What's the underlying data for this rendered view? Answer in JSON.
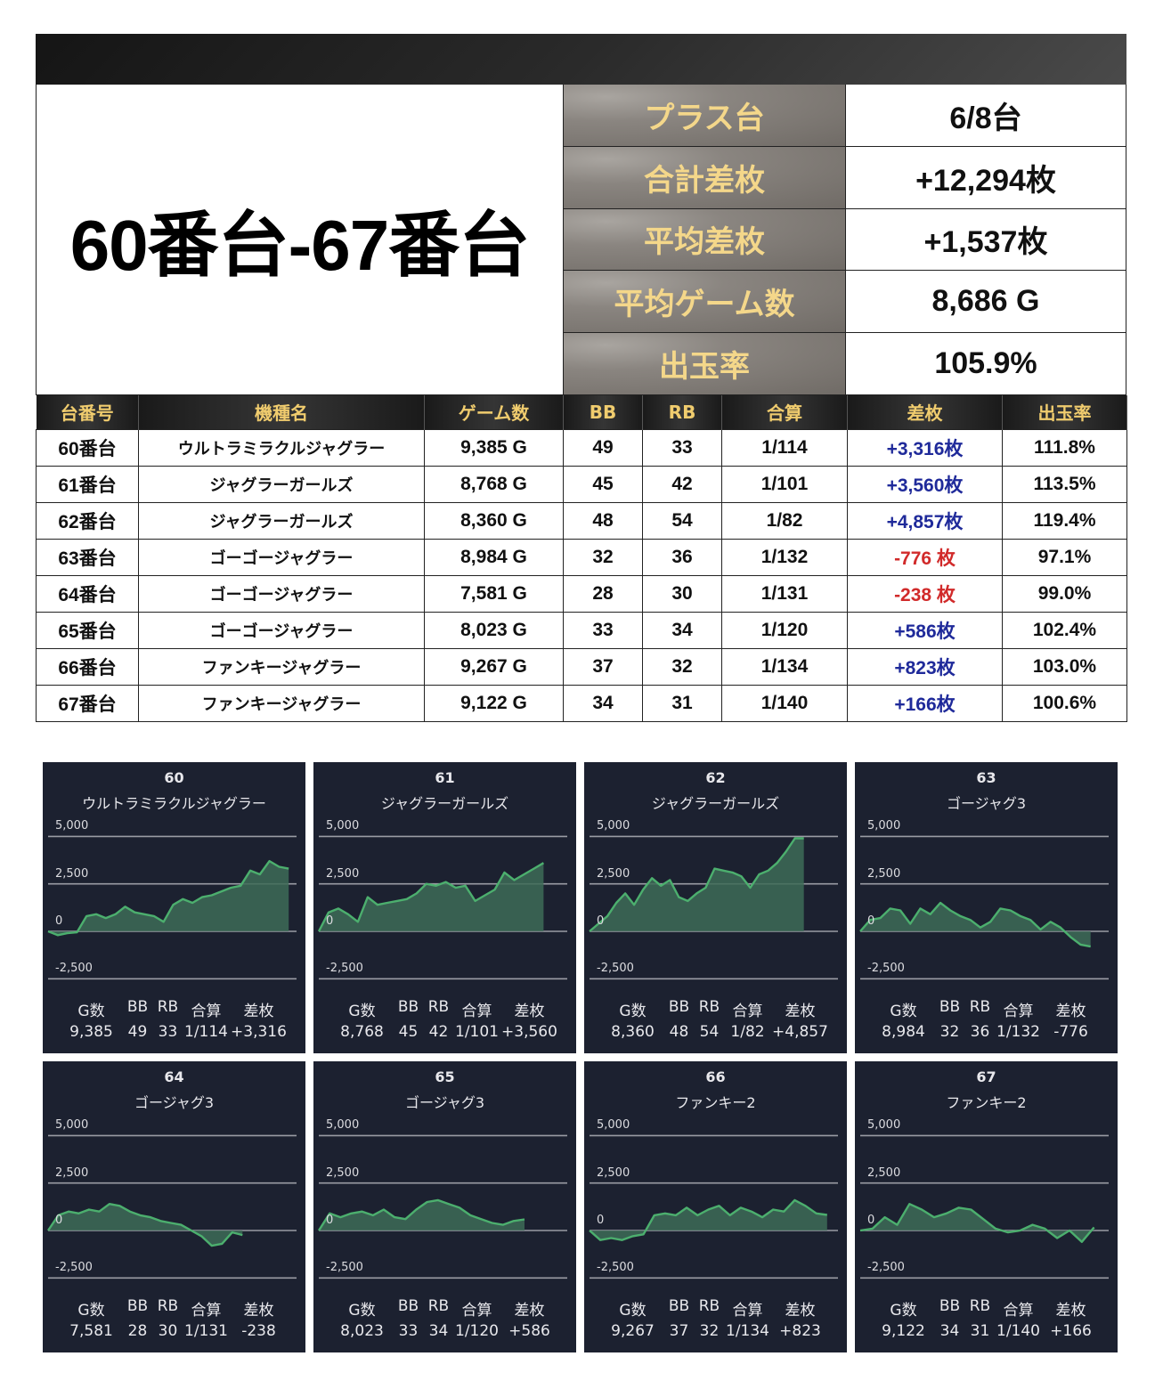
{
  "header": {
    "title": "60番台-67番台"
  },
  "summary": [
    {
      "label": "プラス台",
      "value": "6/8台"
    },
    {
      "label": "合計差枚",
      "value": "+12,294枚"
    },
    {
      "label": "平均差枚",
      "value": "+1,537枚"
    },
    {
      "label": "平均ゲーム数",
      "value": "8,686 G"
    },
    {
      "label": "出玉率",
      "value": "105.9%"
    }
  ],
  "table": {
    "headers": [
      "台番号",
      "機種名",
      "ゲーム数",
      "BB",
      "RB",
      "合算",
      "差枚",
      "出玉率"
    ],
    "rows": [
      {
        "machine": "60番台",
        "model": "ウルトラミラクルジャグラー",
        "games": "9,385 G",
        "bb": "49",
        "rb": "33",
        "combined": "1/114",
        "diff": "+3,316枚",
        "rate": "111.8%",
        "sign": "plus"
      },
      {
        "machine": "61番台",
        "model": "ジャグラーガールズ",
        "games": "8,768 G",
        "bb": "45",
        "rb": "42",
        "combined": "1/101",
        "diff": "+3,560枚",
        "rate": "113.5%",
        "sign": "plus"
      },
      {
        "machine": "62番台",
        "model": "ジャグラーガールズ",
        "games": "8,360 G",
        "bb": "48",
        "rb": "54",
        "combined": "1/82",
        "diff": "+4,857枚",
        "rate": "119.4%",
        "sign": "plus"
      },
      {
        "machine": "63番台",
        "model": "ゴーゴージャグラー",
        "games": "8,984 G",
        "bb": "32",
        "rb": "36",
        "combined": "1/132",
        "diff": "-776 枚",
        "rate": "97.1%",
        "sign": "minus"
      },
      {
        "machine": "64番台",
        "model": "ゴーゴージャグラー",
        "games": "7,581 G",
        "bb": "28",
        "rb": "30",
        "combined": "1/131",
        "diff": "-238 枚",
        "rate": "99.0%",
        "sign": "minus"
      },
      {
        "machine": "65番台",
        "model": "ゴーゴージャグラー",
        "games": "8,023 G",
        "bb": "33",
        "rb": "34",
        "combined": "1/120",
        "diff": "+586枚",
        "rate": "102.4%",
        "sign": "plus"
      },
      {
        "machine": "66番台",
        "model": "ファンキージャグラー",
        "games": "9,267 G",
        "bb": "37",
        "rb": "32",
        "combined": "1/134",
        "diff": "+823枚",
        "rate": "103.0%",
        "sign": "plus"
      },
      {
        "machine": "67番台",
        "model": "ファンキージャグラー",
        "games": "9,122 G",
        "bb": "34",
        "rb": "31",
        "combined": "1/140",
        "diff": "+166枚",
        "rate": "100.6%",
        "sign": "plus"
      }
    ]
  },
  "colors": {
    "plus": "#1f2a9a",
    "minus": "#d12a2a",
    "header_gold": "#f0cc6e",
    "panel_bg": "#1c2130",
    "line_green": "#4caf6e"
  },
  "chart_data": [
    {
      "type": "area",
      "title": "60",
      "subtitle": "ウルトラミラクルジャグラー",
      "y_ticks": [
        "5,000",
        "2,500",
        "0",
        "-2,500"
      ],
      "ylim": [
        -2500,
        5000
      ],
      "stats_labels": [
        "G数",
        "BB",
        "RB",
        "合算",
        "差枚"
      ],
      "stats_values": [
        "9,385",
        "49",
        "33",
        "1/114",
        "+3,316"
      ],
      "y": [
        0,
        -200,
        -100,
        -50,
        800,
        900,
        700,
        900,
        1300,
        1000,
        900,
        800,
        500,
        1400,
        1700,
        1500,
        1800,
        1900,
        2100,
        2300,
        2400,
        3200,
        3000,
        3700,
        3400,
        3300
      ]
    },
    {
      "type": "area",
      "title": "61",
      "subtitle": "ジャグラーガールズ",
      "y_ticks": [
        "5,000",
        "2,500",
        "0",
        "-2,500"
      ],
      "ylim": [
        -2500,
        5000
      ],
      "stats_labels": [
        "G数",
        "BB",
        "RB",
        "合算",
        "差枚"
      ],
      "stats_values": [
        "8,768",
        "45",
        "42",
        "1/101",
        "+3,560"
      ],
      "y": [
        0,
        1000,
        1200,
        900,
        500,
        1800,
        1400,
        1500,
        1600,
        1700,
        2000,
        2500,
        2400,
        2600,
        2300,
        2400,
        1600,
        1900,
        2200,
        3100,
        2700,
        3000,
        3300,
        3600
      ]
    },
    {
      "type": "area",
      "title": "62",
      "subtitle": "ジャグラーガールズ",
      "y_ticks": [
        "5,000",
        "2,500",
        "0",
        "-2,500"
      ],
      "ylim": [
        -2500,
        5000
      ],
      "stats_labels": [
        "G数",
        "BB",
        "RB",
        "合算",
        "差枚"
      ],
      "stats_values": [
        "8,360",
        "48",
        "54",
        "1/82",
        "+4,857"
      ],
      "y": [
        0,
        400,
        800,
        1500,
        2000,
        1400,
        2200,
        2800,
        2400,
        2700,
        1800,
        1600,
        2000,
        2300,
        3300,
        3200,
        3100,
        2900,
        2300,
        3000,
        3200,
        3600,
        4200,
        4900,
        4900
      ]
    },
    {
      "type": "area",
      "title": "63",
      "subtitle": "ゴージャグ3",
      "y_ticks": [
        "5,000",
        "2,500",
        "0",
        "-2,500"
      ],
      "ylim": [
        -2500,
        5000
      ],
      "stats_labels": [
        "G数",
        "BB",
        "RB",
        "合算",
        "差枚"
      ],
      "stats_values": [
        "8,984",
        "32",
        "36",
        "1/132",
        "-776"
      ],
      "y": [
        0,
        600,
        700,
        1200,
        1100,
        400,
        1200,
        900,
        1500,
        1100,
        800,
        600,
        200,
        500,
        1200,
        1100,
        800,
        600,
        100,
        500,
        200,
        -300,
        -700,
        -800
      ]
    },
    {
      "type": "area",
      "title": "64",
      "subtitle": "ゴージャグ3",
      "y_ticks": [
        "5,000",
        "2,500",
        "0",
        "-2,500"
      ],
      "ylim": [
        -2500,
        5000
      ],
      "stats_labels": [
        "G数",
        "BB",
        "RB",
        "合算",
        "差枚"
      ],
      "stats_values": [
        "7,581",
        "28",
        "30",
        "1/131",
        "-238"
      ],
      "y": [
        0,
        800,
        1000,
        900,
        1100,
        1000,
        1400,
        1300,
        1000,
        800,
        700,
        500,
        400,
        300,
        0,
        -300,
        -800,
        -700,
        -100,
        -238
      ]
    },
    {
      "type": "area",
      "title": "65",
      "subtitle": "ゴージャグ3",
      "y_ticks": [
        "5,000",
        "2,500",
        "0",
        "-2,500"
      ],
      "ylim": [
        -2500,
        5000
      ],
      "stats_labels": [
        "G数",
        "BB",
        "RB",
        "合算",
        "差枚"
      ],
      "stats_values": [
        "8,023",
        "33",
        "34",
        "1/120",
        "+586"
      ],
      "y": [
        0,
        900,
        700,
        900,
        1000,
        800,
        1100,
        700,
        600,
        1100,
        1500,
        1600,
        1400,
        1200,
        800,
        600,
        400,
        300,
        500,
        586
      ]
    },
    {
      "type": "area",
      "title": "66",
      "subtitle": "ファンキー2",
      "y_ticks": [
        "5,000",
        "2,500",
        "0",
        "-2,500"
      ],
      "ylim": [
        -2500,
        5000
      ],
      "stats_labels": [
        "G数",
        "BB",
        "RB",
        "合算",
        "差枚"
      ],
      "stats_values": [
        "9,267",
        "37",
        "32",
        "1/134",
        "+823"
      ],
      "y": [
        0,
        -500,
        -400,
        -500,
        -300,
        -200,
        800,
        900,
        800,
        1200,
        800,
        1100,
        1300,
        800,
        1200,
        1000,
        700,
        1100,
        1000,
        1600,
        1300,
        900,
        823
      ]
    },
    {
      "type": "area",
      "title": "67",
      "subtitle": "ファンキー2",
      "y_ticks": [
        "5,000",
        "2,500",
        "0",
        "-2,500"
      ],
      "ylim": [
        -2500,
        5000
      ],
      "stats_labels": [
        "G数",
        "BB",
        "RB",
        "合算",
        "差枚"
      ],
      "stats_values": [
        "9,122",
        "34",
        "31",
        "1/140",
        "+166"
      ],
      "y": [
        0,
        100,
        700,
        300,
        1400,
        1100,
        700,
        900,
        1200,
        1100,
        600,
        100,
        -100,
        0,
        300,
        100,
        -400,
        0,
        -600,
        166
      ]
    }
  ]
}
